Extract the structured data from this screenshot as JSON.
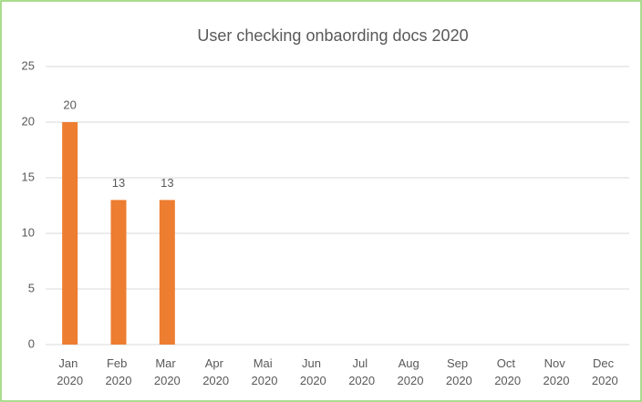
{
  "chart_data": {
    "type": "bar",
    "title": "User checking onbaording docs 2020",
    "categories": [
      "Jan 2020",
      "Feb 2020",
      "Mar 2020",
      "Apr 2020",
      "Mai 2020",
      "Jun 2020",
      "Jul 2020",
      "Aug 2020",
      "Sep 2020",
      "Oct 2020",
      "Nov 2020",
      "Dec 2020"
    ],
    "values": [
      20,
      13,
      13,
      null,
      null,
      null,
      null,
      null,
      null,
      null,
      null,
      null
    ],
    "color": "#ed7d31",
    "ylim": [
      0,
      25
    ],
    "yticks": [
      0,
      5,
      10,
      15,
      20,
      25
    ],
    "grid": true
  }
}
